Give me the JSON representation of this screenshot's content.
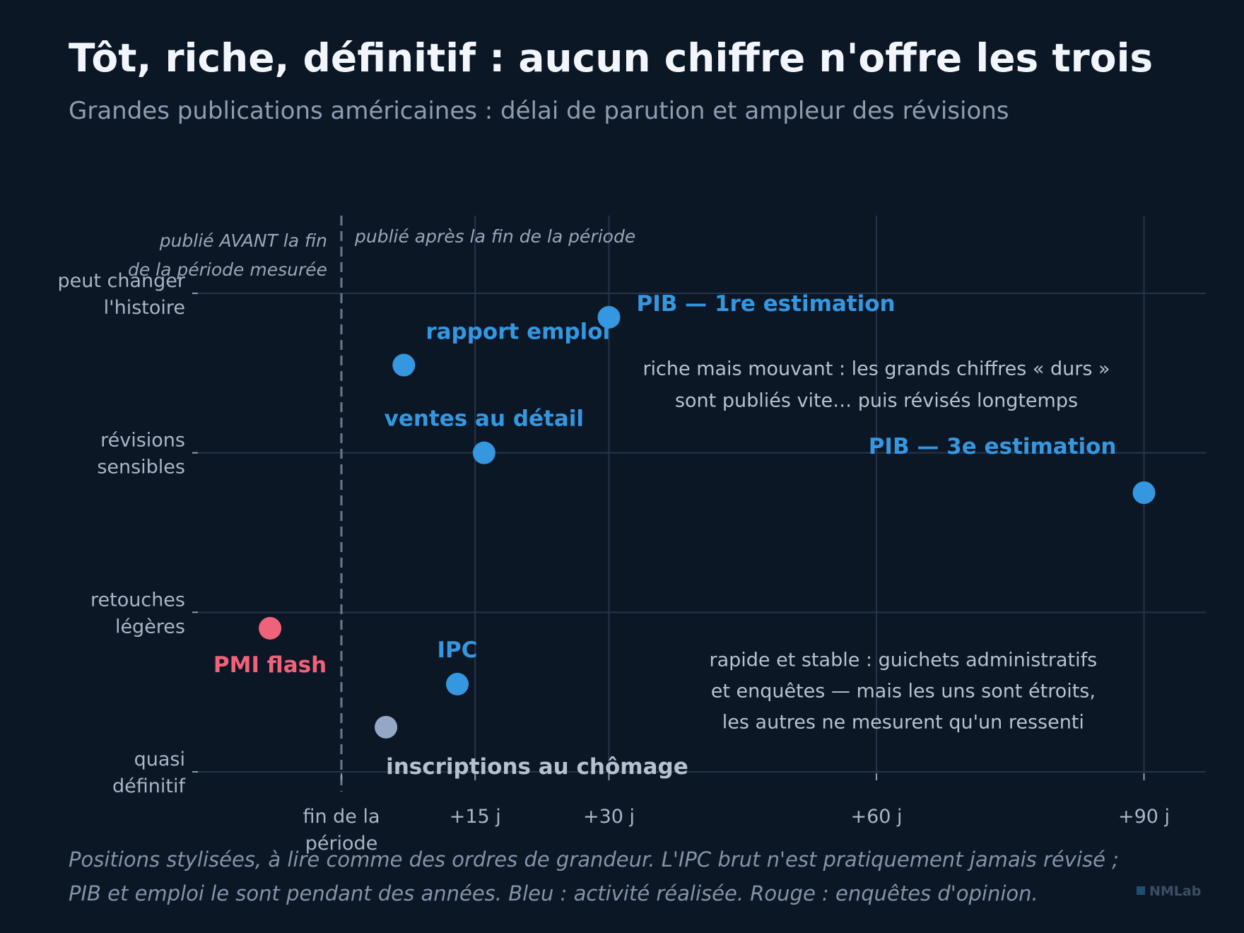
{
  "title": "Tôt, riche, définitif : aucun chiffre n'offre les trois",
  "subtitle": "Grandes publications américaines : délai de parution et ampleur des révisions",
  "footnote": [
    "Positions stylisées, à lire comme des ordres de grandeur. L'IPC brut n'est pratiquement jamais révisé ;",
    "PIB et emploi le sont pendant des années. Bleu : activité réalisée. Rouge : enquêtes d'opinion."
  ],
  "brand": "NMLab",
  "colors": {
    "background": "#0c1726",
    "activity": "#3497e0",
    "survey": "#f0627a",
    "administrative": "#94a8c6",
    "grid": "#26344a"
  },
  "chart_data": {
    "type": "scatter",
    "xlabel": "",
    "ylabel": "",
    "xlim": [
      -15,
      93
    ],
    "ylim": [
      0,
      3
    ],
    "x_ticks": [
      {
        "value": 0,
        "label": [
          "fin de la",
          "période"
        ]
      },
      {
        "value": 15,
        "label": [
          "+15 j"
        ]
      },
      {
        "value": 30,
        "label": [
          "+30 j"
        ]
      },
      {
        "value": 60,
        "label": [
          "+60 j"
        ]
      },
      {
        "value": 90,
        "label": [
          "+90 j"
        ]
      }
    ],
    "y_ticks": [
      {
        "value": 0,
        "label": [
          "quasi",
          "définitif"
        ]
      },
      {
        "value": 1,
        "label": [
          "retouches",
          "légères"
        ]
      },
      {
        "value": 2,
        "label": [
          "révisions",
          "sensibles"
        ]
      },
      {
        "value": 3,
        "label": [
          "peut changer",
          "l'histoire"
        ]
      }
    ],
    "grid": true,
    "reference_line": {
      "x": 0,
      "style": "dashed"
    },
    "regions": [
      {
        "text": [
          "publié AVANT la fin",
          "de la période mesurée"
        ]
      },
      {
        "text": [
          "publié après la fin de la période"
        ]
      }
    ],
    "points": [
      {
        "label": "PIB — 1re estimation",
        "x": 30,
        "y": 2.85,
        "group": "activity",
        "label_pos": "right"
      },
      {
        "label": "rapport emploi",
        "x": 7,
        "y": 2.55,
        "group": "activity",
        "label_pos": "above-right"
      },
      {
        "label": "ventes au détail",
        "x": 16,
        "y": 2.0,
        "group": "activity",
        "label_pos": "above"
      },
      {
        "label": "PIB — 3e estimation",
        "x": 90,
        "y": 1.75,
        "group": "activity",
        "label_pos": "above-left"
      },
      {
        "label": "PMI flash",
        "x": -8,
        "y": 0.9,
        "group": "survey",
        "label_pos": "below"
      },
      {
        "label": "IPC",
        "x": 13,
        "y": 0.55,
        "group": "activity",
        "label_pos": "above"
      },
      {
        "label": "inscriptions au chômage",
        "x": 5,
        "y": 0.28,
        "group": "administrative",
        "label_pos": "below-right"
      }
    ],
    "annotations": [
      {
        "text": [
          "riche mais mouvant : les grands chiffres « durs »",
          "sont publiés vite… puis révisés longtemps"
        ],
        "x": 60,
        "y": 2.4
      },
      {
        "text": [
          "rapide et stable : guichets administratifs",
          "et enquêtes — mais les uns sont étroits,",
          "les autres ne mesurent qu'un ressenti"
        ],
        "x": 63,
        "y": 0.45
      }
    ]
  }
}
